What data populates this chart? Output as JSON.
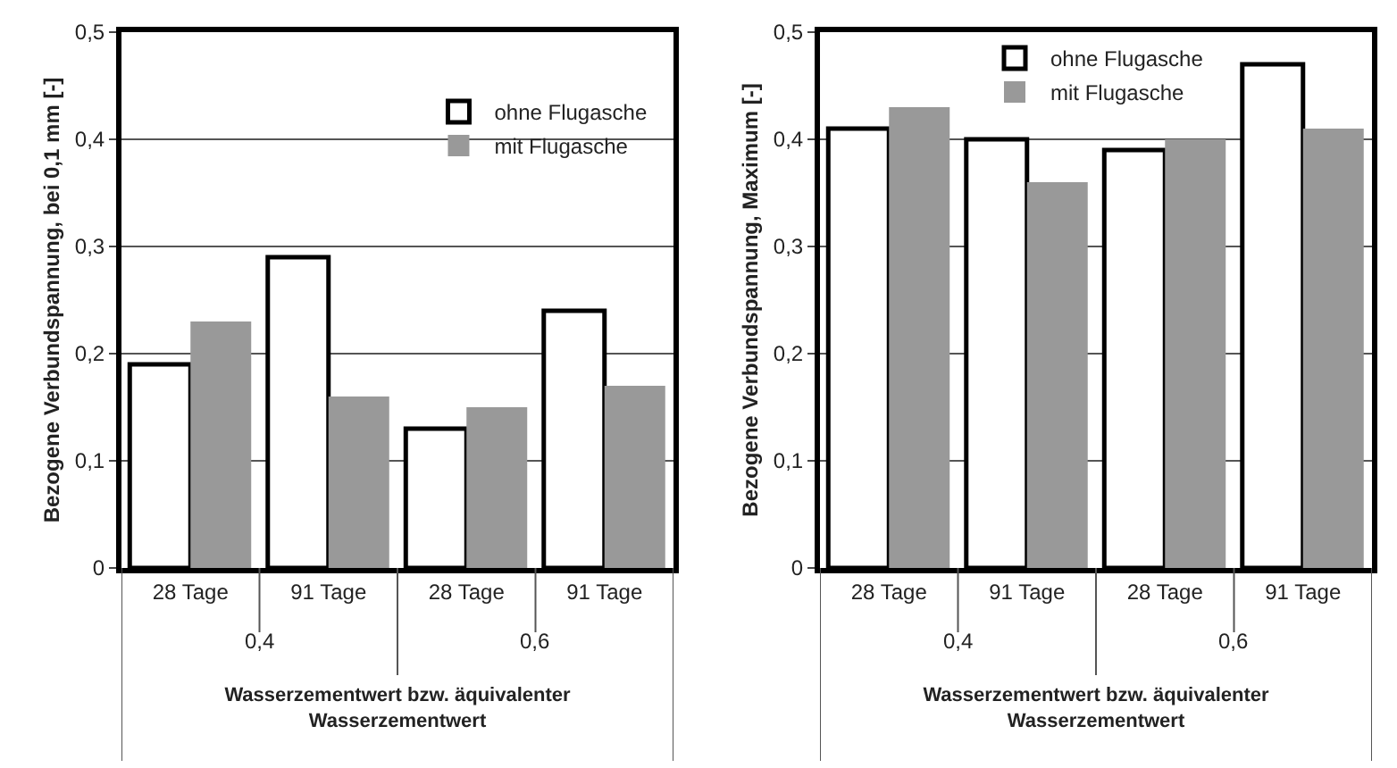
{
  "chart_data": [
    {
      "type": "bar",
      "categories": [
        "28 Tage",
        "91 Tage",
        "28 Tage",
        "91 Tage"
      ],
      "xlabel": "Wasserzementwert bzw. äquivalenter Wasserzementwert",
      "ylabel": "Bezogene Verbundspannung, bei 0,1 mm [-]",
      "annotations": [
        "0,4",
        "0,6"
      ],
      "series": [
        {
          "name": "ohne Flugasche",
          "color": "#ffffff",
          "values": [
            0.19,
            0.29,
            0.13,
            0.24
          ]
        },
        {
          "name": "mit Flugasche",
          "color": "#999999",
          "values": [
            0.23,
            0.16,
            0.15,
            0.17
          ]
        }
      ],
      "ylim": [
        0,
        0.5
      ],
      "yticks": [
        0,
        {
          "value": 0.1,
          "label": "0,1"
        },
        {
          "value": 0.2,
          "label": "0,2"
        },
        {
          "value": 0.3,
          "label": "0,3"
        },
        {
          "value": 0.4,
          "label": "0,4"
        },
        {
          "value": 0.5,
          "label": "0,5"
        }
      ],
      "grid": "y",
      "legend": "top right"
    },
    {
      "type": "bar",
      "categories": [
        "28 Tage",
        "91 Tage",
        "28 Tage",
        "91 Tage"
      ],
      "xlabel": "Wasserzementwert bzw. äquivalenter Wasserzementwert",
      "ylabel": "Bezogene Verbundspannung, Maximum [-]",
      "annotations": [
        "0,4",
        "0,6"
      ],
      "series": [
        {
          "name": "ohne Flugasche",
          "color": "#ffffff",
          "values": [
            0.41,
            0.4,
            0.39,
            0.47
          ]
        },
        {
          "name": "mit Flugasche",
          "color": "#999999",
          "values": [
            0.43,
            0.36,
            0.4,
            0.41
          ]
        }
      ],
      "ylim": [
        0,
        0.5
      ],
      "yticks": [
        0,
        {
          "value": 0.1,
          "label": "0,1"
        },
        {
          "value": 0.2,
          "label": "0,2"
        },
        {
          "value": 0.3,
          "label": "0,3"
        },
        {
          "value": 0.4,
          "label": "0,4"
        },
        {
          "value": 0.5,
          "label": "0,5"
        }
      ],
      "grid": "y",
      "legend": "top"
    }
  ]
}
